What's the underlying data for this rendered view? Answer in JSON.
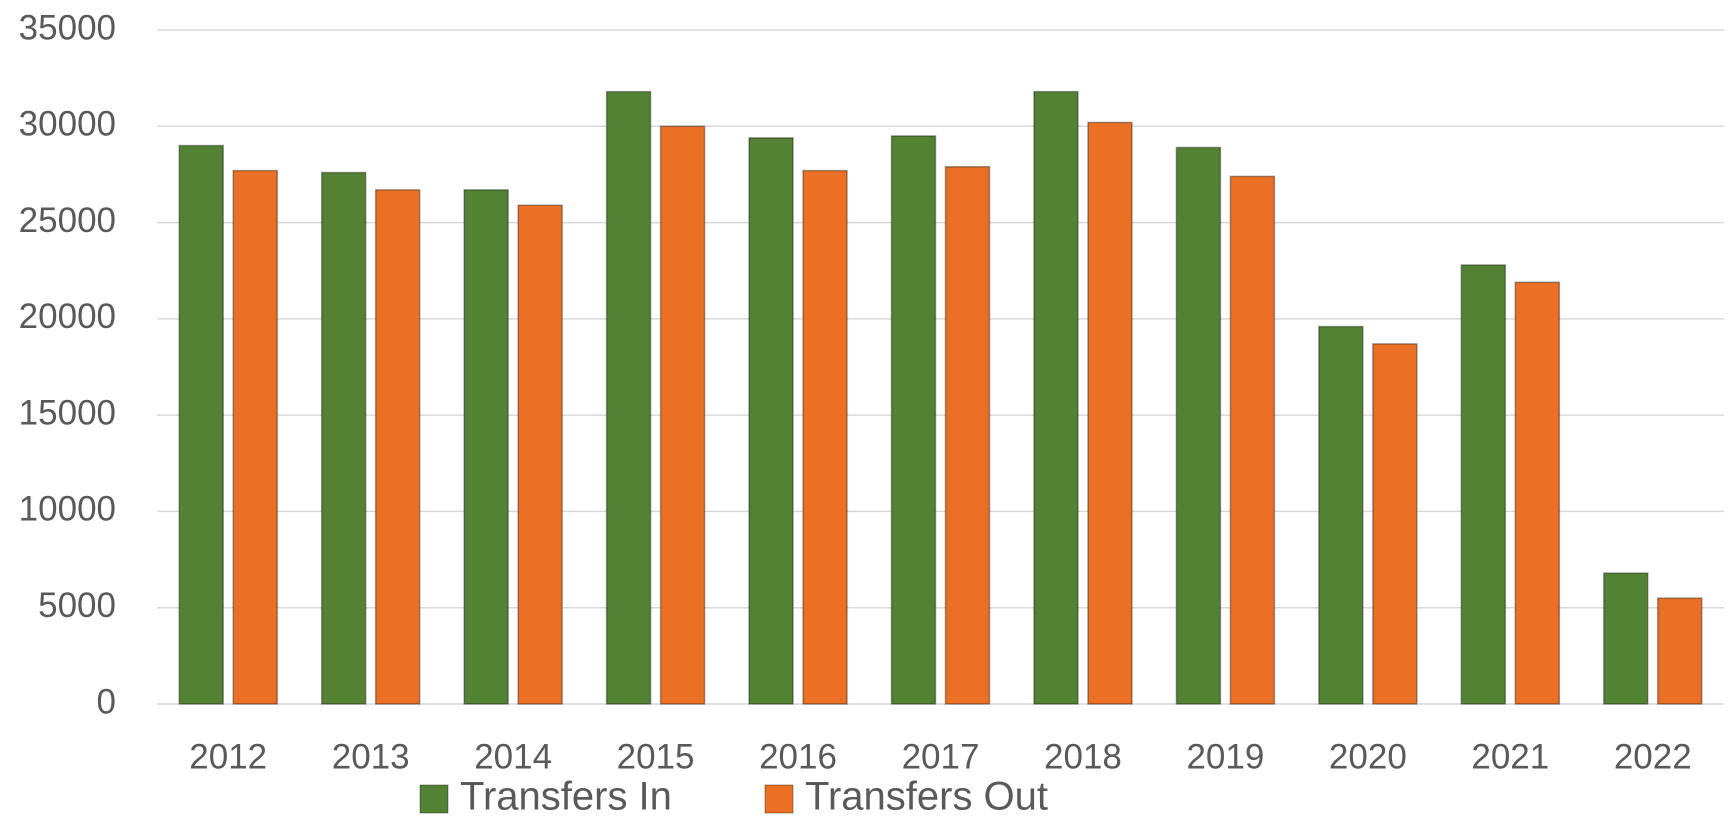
{
  "chart_data": {
    "type": "bar",
    "categories": [
      "2012",
      "2013",
      "2014",
      "2015",
      "2016",
      "2017",
      "2018",
      "2019",
      "2020",
      "2021",
      "2022"
    ],
    "series": [
      {
        "name": "Transfers In",
        "color": "#548235",
        "values": [
          29000,
          27600,
          26700,
          31800,
          29400,
          29500,
          31800,
          28900,
          19600,
          22800,
          6800
        ]
      },
      {
        "name": "Transfers Out",
        "color": "#e97025",
        "values": [
          27700,
          26700,
          25900,
          30000,
          27700,
          27900,
          30200,
          27400,
          18700,
          21900,
          5500
        ]
      }
    ],
    "ylim": [
      0,
      35000
    ],
    "yticks": [
      0,
      5000,
      10000,
      15000,
      20000,
      25000,
      30000,
      35000
    ],
    "grid": true,
    "legend": "bottom"
  }
}
